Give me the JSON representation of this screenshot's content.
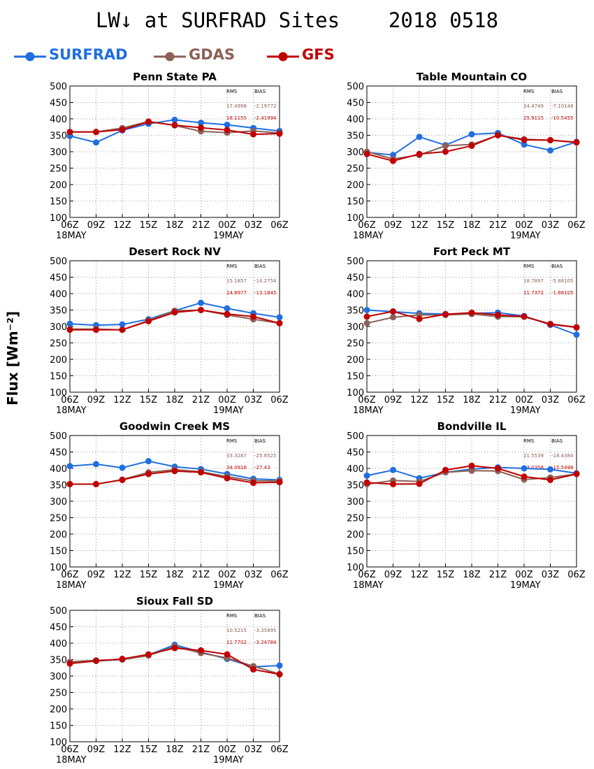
{
  "title": "LW↓ at SURFRAD Sites    2018 0518",
  "ylabel": "Flux [Wm⁻²]",
  "legend": [
    {
      "name": "SURFRAD",
      "color": "#1f6fe0"
    },
    {
      "name": "GDAS",
      "color": "#8c6057"
    },
    {
      "name": "GFS",
      "color": "#c00000"
    }
  ],
  "stats_headers": {
    "rms": "RMS",
    "bias": "BIAS"
  },
  "chart_data": [
    {
      "type": "line",
      "title": "Penn State PA",
      "categories": [
        "06Z",
        "09Z",
        "12Z",
        "15Z",
        "18Z",
        "21Z",
        "00Z",
        "03Z",
        "06Z"
      ],
      "date_labels": [
        "18MAY",
        "19MAY"
      ],
      "ylim": [
        100,
        500
      ],
      "yticks": [
        100,
        150,
        200,
        250,
        300,
        350,
        400,
        450,
        500
      ],
      "grid": true,
      "stats": [
        {
          "rms": "17.4998",
          "bias": "-2.19772"
        },
        {
          "rms": "18.1155",
          "bias": "-2.41994"
        }
      ],
      "series": [
        {
          "name": "SURFRAD",
          "values": [
            348,
            328,
            365,
            385,
            397,
            388,
            382,
            372,
            363
          ]
        },
        {
          "name": "GDAS",
          "values": [
            360,
            360,
            372,
            392,
            380,
            362,
            358,
            363,
            357
          ]
        },
        {
          "name": "GFS",
          "values": [
            360,
            360,
            367,
            391,
            381,
            373,
            366,
            353,
            355
          ]
        }
      ]
    },
    {
      "type": "line",
      "title": "Table Mountain CO",
      "categories": [
        "06Z",
        "09Z",
        "12Z",
        "15Z",
        "18Z",
        "21Z",
        "00Z",
        "03Z",
        "06Z"
      ],
      "date_labels": [
        "18MAY",
        "19MAY"
      ],
      "ylim": [
        100,
        500
      ],
      "yticks": [
        100,
        150,
        200,
        250,
        300,
        350,
        400,
        450,
        500
      ],
      "grid": true,
      "stats": [
        {
          "rms": "24.4749",
          "bias": "-7.10148"
        },
        {
          "rms": "25.9115",
          "bias": "-10.5455"
        }
      ],
      "series": [
        {
          "name": "SURFRAD",
          "values": [
            298,
            290,
            345,
            320,
            353,
            357,
            322,
            304,
            330
          ]
        },
        {
          "name": "GDAS",
          "values": [
            300,
            278,
            290,
            318,
            322,
            350,
            338,
            335,
            328
          ]
        },
        {
          "name": "GFS",
          "values": [
            293,
            272,
            293,
            300,
            318,
            350,
            336,
            335,
            329
          ]
        }
      ]
    },
    {
      "type": "line",
      "title": "Desert Rock NV",
      "categories": [
        "06Z",
        "09Z",
        "12Z",
        "15Z",
        "18Z",
        "21Z",
        "00Z",
        "03Z",
        "06Z"
      ],
      "date_labels": [
        "18MAY",
        "19MAY"
      ],
      "ylim": [
        100,
        500
      ],
      "yticks": [
        100,
        150,
        200,
        250,
        300,
        350,
        400,
        450,
        500
      ],
      "grid": true,
      "stats": [
        {
          "rms": "15.1857",
          "bias": "-14.2754"
        },
        {
          "rms": "14.8977",
          "bias": "-13.1845"
        }
      ],
      "series": [
        {
          "name": "SURFRAD",
          "values": [
            308,
            304,
            306,
            322,
            348,
            372,
            355,
            340,
            328
          ]
        },
        {
          "name": "GDAS",
          "values": [
            292,
            292,
            290,
            318,
            348,
            350,
            335,
            322,
            310
          ]
        },
        {
          "name": "GFS",
          "values": [
            290,
            290,
            290,
            316,
            343,
            350,
            338,
            330,
            310
          ]
        }
      ]
    },
    {
      "type": "line",
      "title": "Fort Peck MT",
      "categories": [
        "06Z",
        "09Z",
        "12Z",
        "15Z",
        "18Z",
        "21Z",
        "00Z",
        "03Z",
        "06Z"
      ],
      "date_labels": [
        "18MAY",
        "19MAY"
      ],
      "ylim": [
        100,
        500
      ],
      "yticks": [
        100,
        150,
        200,
        250,
        300,
        350,
        400,
        450,
        500
      ],
      "grid": true,
      "stats": [
        {
          "rms": "18.7897",
          "bias": "-5.88105"
        },
        {
          "rms": "11.7372",
          "bias": "-1.88105"
        }
      ],
      "series": [
        {
          "name": "SURFRAD",
          "values": [
            350,
            345,
            340,
            338,
            340,
            342,
            332,
            305,
            275
          ]
        },
        {
          "name": "GDAS",
          "values": [
            310,
            328,
            335,
            335,
            338,
            330,
            330,
            308,
            298
          ]
        },
        {
          "name": "GFS",
          "values": [
            330,
            346,
            323,
            337,
            342,
            335,
            330,
            307,
            297
          ]
        }
      ]
    },
    {
      "type": "line",
      "title": "Goodwin Creek MS",
      "categories": [
        "06Z",
        "09Z",
        "12Z",
        "15Z",
        "18Z",
        "21Z",
        "00Z",
        "03Z",
        "06Z"
      ],
      "date_labels": [
        "18MAY",
        "19MAY"
      ],
      "ylim": [
        100,
        500
      ],
      "yticks": [
        100,
        150,
        200,
        250,
        300,
        350,
        400,
        450,
        500
      ],
      "grid": true,
      "stats": [
        {
          "rms": "33.3287",
          "bias": "-25.8525"
        },
        {
          "rms": "34.0918",
          "bias": "-27.43"
        }
      ],
      "series": [
        {
          "name": "SURFRAD",
          "values": [
            407,
            413,
            402,
            422,
            405,
            398,
            383,
            368,
            365
          ]
        },
        {
          "name": "GDAS",
          "values": [
            352,
            352,
            366,
            388,
            396,
            390,
            375,
            362,
            362
          ]
        },
        {
          "name": "GFS",
          "values": [
            352,
            352,
            365,
            383,
            392,
            388,
            370,
            356,
            358
          ]
        }
      ]
    },
    {
      "type": "line",
      "title": "Bondville IL",
      "categories": [
        "06Z",
        "09Z",
        "12Z",
        "15Z",
        "18Z",
        "21Z",
        "00Z",
        "03Z",
        "06Z"
      ],
      "date_labels": [
        "18MAY",
        "19MAY"
      ],
      "ylim": [
        100,
        500
      ],
      "yticks": [
        100,
        150,
        200,
        250,
        300,
        350,
        400,
        450,
        500
      ],
      "grid": true,
      "stats": [
        {
          "rms": "21.5539",
          "bias": "-18.4384"
        },
        {
          "rms": "23.0358",
          "bias": "-15.5498"
        }
      ],
      "series": [
        {
          "name": "SURFRAD",
          "values": [
            378,
            395,
            370,
            388,
            398,
            403,
            400,
            397,
            385
          ]
        },
        {
          "name": "GDAS",
          "values": [
            352,
            363,
            360,
            388,
            393,
            392,
            366,
            372,
            383
          ]
        },
        {
          "name": "GFS",
          "values": [
            357,
            352,
            353,
            395,
            408,
            400,
            375,
            365,
            383
          ]
        }
      ]
    },
    {
      "type": "line",
      "title": "Sioux Fall SD",
      "categories": [
        "06Z",
        "09Z",
        "12Z",
        "15Z",
        "18Z",
        "21Z",
        "00Z",
        "03Z",
        "06Z"
      ],
      "date_labels": [
        "18MAY",
        "19MAY"
      ],
      "ylim": [
        100,
        500
      ],
      "yticks": [
        100,
        150,
        200,
        250,
        300,
        350,
        400,
        450,
        500
      ],
      "grid": true,
      "stats": [
        {
          "rms": "10.5215",
          "bias": "-3.35895"
        },
        {
          "rms": "11.7702",
          "bias": "-3.24784"
        }
      ],
      "series": [
        {
          "name": "SURFRAD",
          "values": [
            342,
            346,
            350,
            364,
            395,
            373,
            352,
            328,
            332
          ]
        },
        {
          "name": "GDAS",
          "values": [
            343,
            348,
            350,
            362,
            390,
            370,
            355,
            330,
            306
          ]
        },
        {
          "name": "GFS",
          "values": [
            338,
            346,
            352,
            366,
            385,
            378,
            366,
            320,
            305
          ]
        }
      ]
    }
  ]
}
